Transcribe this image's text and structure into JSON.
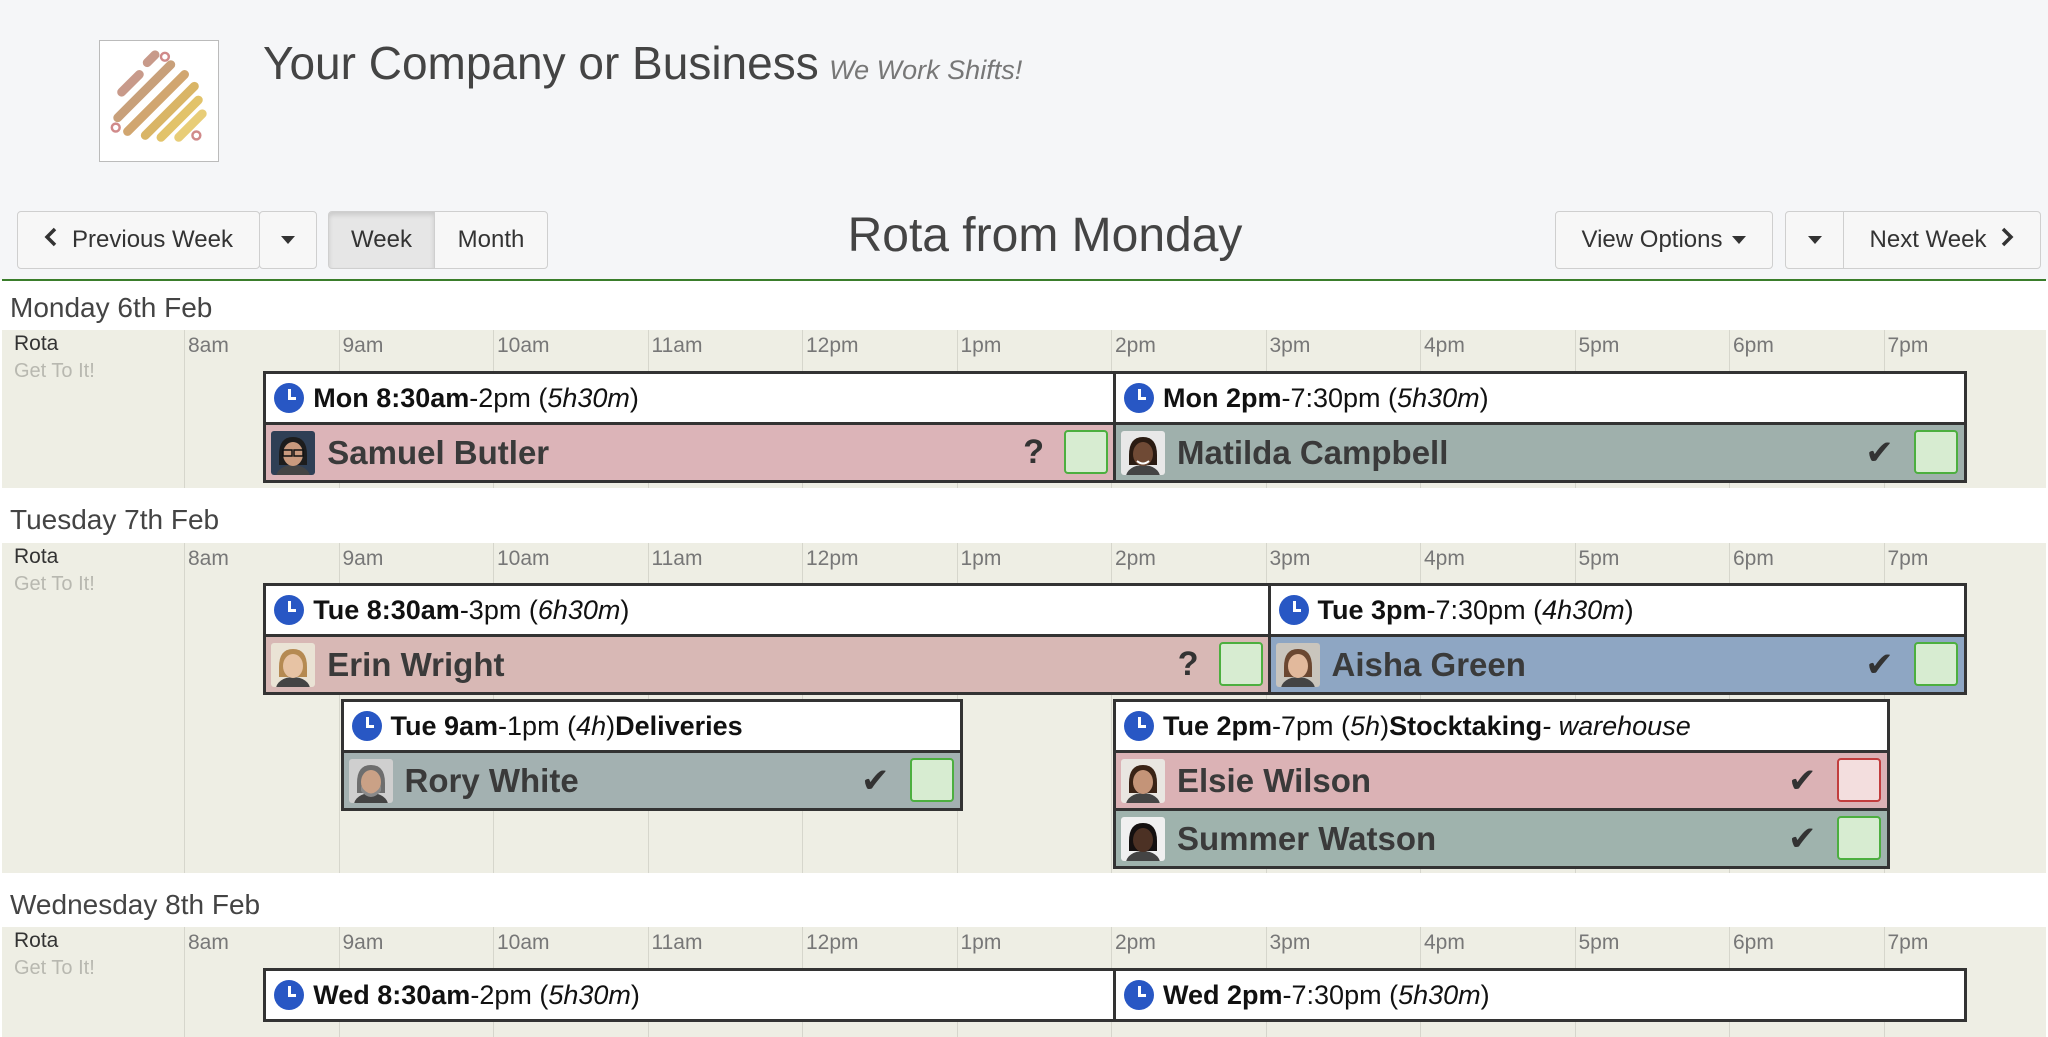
{
  "header": {
    "company_name": "Your Company or Business",
    "tagline": "We Work Shifts!",
    "logo_icon": "stripes-logo-icon"
  },
  "toolbar": {
    "previous_week_label": "Previous Week",
    "week_label": "Week",
    "month_label": "Month",
    "title": "Rota from Monday",
    "view_options_label": "View Options",
    "next_week_label": "Next Week",
    "active_view": "Week"
  },
  "hours": [
    "8am",
    "9am",
    "10am",
    "11am",
    "12pm",
    "1pm",
    "2pm",
    "3pm",
    "4pm",
    "5pm",
    "6pm",
    "7pm"
  ],
  "days": [
    {
      "label": "Monday 6th Feb",
      "rota_label": "Rota",
      "rota_sub": "Get To It!",
      "shifts": [
        {
          "start_bold": "Mon 8:30am",
          "end": "-2pm (",
          "duration": "5h30m",
          "close": ")",
          "people": [
            {
              "name": "Samuel Butler",
              "status": "?",
              "status_icon": "question-icon",
              "bg": "#dcb4b8",
              "checkbox": "green",
              "avatar": "man-glasses"
            }
          ]
        },
        {
          "start_bold": "Mon 2pm",
          "end": "-7:30pm (",
          "duration": "5h30m",
          "close": ")",
          "people": [
            {
              "name": "Matilda Campbell",
              "status": "✔",
              "status_icon": "checkmark-icon",
              "bg": "#9fb0ac",
              "checkbox": "green",
              "avatar": "woman-smile"
            }
          ]
        }
      ]
    },
    {
      "label": "Tuesday 7th Feb",
      "rota_label": "Rota",
      "rota_sub": "Get To It!",
      "shifts": [
        {
          "start_bold": "Tue 8:30am",
          "end": "-3pm (",
          "duration": "6h30m",
          "close": ")",
          "people": [
            {
              "name": "Erin Wright",
              "status": "?",
              "status_icon": "question-icon",
              "bg": "#d8b8b5",
              "checkbox": "green",
              "avatar": "woman-blonde"
            }
          ]
        },
        {
          "start_bold": "Tue 3pm",
          "end": "-7:30pm (",
          "duration": "4h30m",
          "close": ")",
          "people": [
            {
              "name": "Aisha Green",
              "status": "✔",
              "status_icon": "checkmark-icon",
              "bg": "#8ea6c3",
              "checkbox": "green",
              "avatar": "woman-brown"
            }
          ]
        },
        {
          "start_bold": "Tue 9am",
          "end": "-1pm (",
          "duration": "4h",
          "close": ") ",
          "role": "Deliveries",
          "people": [
            {
              "name": "Rory White",
              "status": "✔",
              "status_icon": "checkmark-icon",
              "bg": "#a3b1b1",
              "checkbox": "green",
              "avatar": "man-beard"
            }
          ]
        },
        {
          "start_bold": "Tue 2pm",
          "end": "-7pm (",
          "duration": "5h",
          "close": ") ",
          "role": "Stocktaking",
          "location": " - warehouse",
          "people": [
            {
              "name": "Elsie Wilson",
              "status": "✔",
              "status_icon": "checkmark-icon",
              "bg": "#dbb2b5",
              "checkbox": "red",
              "avatar": "woman-curly"
            },
            {
              "name": "Summer Watson",
              "status": "✔",
              "status_icon": "checkmark-icon",
              "bg": "#9fb3ad",
              "checkbox": "green",
              "avatar": "woman-dark"
            }
          ]
        }
      ]
    },
    {
      "label": "Wednesday 8th Feb",
      "rota_label": "Rota",
      "rota_sub": "Get To It!",
      "shifts": [
        {
          "start_bold": "Wed 8:30am",
          "end": "-2pm (",
          "duration": "5h30m",
          "close": ")",
          "people": []
        },
        {
          "start_bold": "Wed 2pm",
          "end": "-7:30pm (",
          "duration": "5h30m",
          "close": ")",
          "people": []
        }
      ]
    }
  ]
}
